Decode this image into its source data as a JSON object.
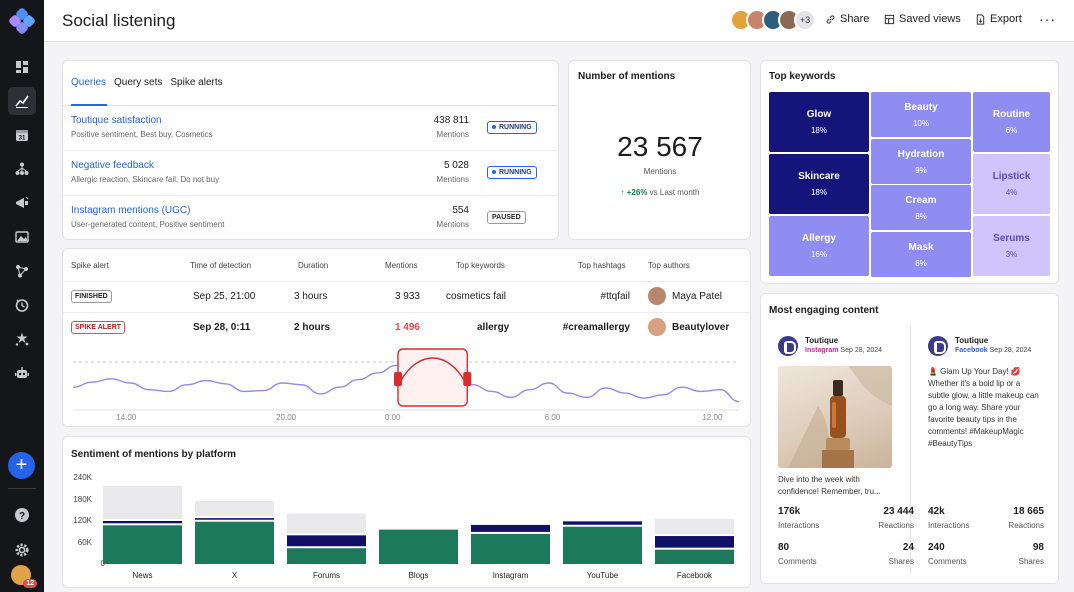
{
  "header": {
    "title": "Social listening",
    "collaborators_more": "+3",
    "share_label": "Share",
    "saved_views_label": "Saved views",
    "export_label": "Export",
    "more_icon": "ellipsis-icon"
  },
  "sidebar": {
    "items": [
      "dashboard-icon",
      "analytics-icon",
      "calendar-icon",
      "hierarchy-icon",
      "campaign-icon",
      "image-icon",
      "network-icon",
      "insights-icon",
      "stars-icon",
      "bot-icon"
    ],
    "active_item": "analytics-icon",
    "notification_count": "12"
  },
  "queries": {
    "tabs": [
      "Queries",
      "Query sets",
      "Spike alerts"
    ],
    "active_tab": "Queries",
    "rows": [
      {
        "name": "Toutique satisfaction",
        "tags": "Positive sentiment, Best buy, Cosmetics",
        "count": "438 811",
        "unit": "Mentions",
        "status": "RUNNING"
      },
      {
        "name": "Negative feedback",
        "tags": "Allergic reaction, Skincare fail, Do not buy",
        "count": "5 028",
        "unit": "Mentions",
        "status": "RUNNING"
      },
      {
        "name": "Instagram mentions (UGC)",
        "tags": "User-generated content, Positive sentiment",
        "count": "554",
        "unit": "Mentions",
        "status": "PAUSED"
      }
    ]
  },
  "mentions": {
    "title": "Number of mentions",
    "value": "23 567",
    "unit": "Mentions",
    "delta": "+26%",
    "delta_suffix": "vs Last month"
  },
  "keywords": {
    "title": "Top keywords",
    "items": [
      {
        "keyword": "Glow",
        "share": "18%"
      },
      {
        "keyword": "Skincare",
        "share": "18%"
      },
      {
        "keyword": "Allergy",
        "share": "16%"
      },
      {
        "keyword": "Beauty",
        "share": "10%"
      },
      {
        "keyword": "Hydration",
        "share": "9%"
      },
      {
        "keyword": "Cream",
        "share": "8%"
      },
      {
        "keyword": "Mask",
        "share": "8%"
      },
      {
        "keyword": "Routine",
        "share": "6%"
      },
      {
        "keyword": "Lipstick",
        "share": "4%"
      },
      {
        "keyword": "Serums",
        "share": "3%"
      }
    ],
    "colors": {
      "dark": "#15147a",
      "mid": "#8f8cf2",
      "light": "#cfc4fb"
    }
  },
  "spikes": {
    "columns": [
      "Spike alert",
      "Time of detection",
      "Duration",
      "Mentions",
      "Top keywords",
      "Top hashtags",
      "Top authors"
    ],
    "rows": [
      {
        "status": "FINISHED",
        "time": "Sep 25, 21:00",
        "duration": "3 hours",
        "mentions": "3 933",
        "keyword": "cosmetics fail",
        "hashtag": "#ttqfail",
        "author": "Maya Patel"
      },
      {
        "status": "SPIKE ALERT",
        "time": "Sep 28, 0:11",
        "duration": "2 hours",
        "mentions": "1 496",
        "keyword": "allergy",
        "hashtag": "#creamallergy",
        "author": "Beautylover"
      }
    ],
    "timeline": {
      "ticks": [
        "14.00",
        "20.00",
        "0.00",
        "6.00",
        "12.00"
      ],
      "tick_hours": [
        14,
        20,
        24,
        30,
        36
      ],
      "range_hours": [
        12,
        37
      ],
      "selected_range_hours": [
        24.2,
        26.8
      ],
      "values": [
        0.4,
        0.52,
        0.6,
        0.5,
        0.34,
        0.3,
        0.46,
        0.56,
        0.48,
        0.3,
        0.32,
        0.5,
        0.46,
        0.24,
        0.4,
        0.58,
        0.74,
        0.92,
        0.8,
        0.44,
        0.28,
        0.46,
        0.3,
        0.16,
        0.34,
        0.5,
        0.26,
        0.16,
        0.38,
        0.26,
        0.14,
        0.22,
        0.4,
        0.3,
        0.34,
        0.06
      ]
    }
  },
  "sentiment": {
    "title": "Sentiment of mentions by platform"
  },
  "engaging": {
    "title": "Most engaging content",
    "posts": [
      {
        "brand": "Toutique",
        "network": "Instagram",
        "date": "Sep 28, 2024",
        "text": "Dive into the week with confidence! Remember, tru...",
        "interactions": "176k",
        "interactions_label": "Interactions",
        "reactions": "23 444",
        "reactions_label": "Reactions",
        "comments": "80",
        "comments_label": "Comments",
        "shares": "24",
        "shares_label": "Shares"
      },
      {
        "brand": "Toutique",
        "network": "Facebook",
        "date": "Sep 28, 2024",
        "text": "💄 Glam Up Your Day! 💋 Whether it's a bold lip or a subtle glow, a little makeup can go a long way. Share your favorite beauty tips in the comments! #MakeupMagic #BeautyTips",
        "interactions": "42k",
        "interactions_label": "Interactions",
        "reactions": "18 665",
        "reactions_label": "Reactions",
        "comments": "240",
        "comments_label": "Comments",
        "shares": "98",
        "shares_label": "Shares"
      }
    ]
  },
  "chart_data": {
    "type": "bar",
    "title": "Sentiment of mentions by platform",
    "categories": [
      "News",
      "X",
      "Forums",
      "Blogs",
      "Instagram",
      "YouTube",
      "Facebook"
    ],
    "series": [
      {
        "name": "",
        "color": "#1c7a5b",
        "values": [
          108000,
          118000,
          44000,
          96000,
          84000,
          104000,
          40000
        ]
      },
      {
        "name": "",
        "color": "#101067",
        "values": [
          12000,
          10000,
          36000,
          0,
          25000,
          15000,
          38000
        ]
      },
      {
        "name": "",
        "color": "#e9e9ec",
        "values": [
          98000,
          48000,
          61000,
          0,
          0,
          0,
          48000
        ]
      }
    ],
    "yticks": [
      "240K",
      "180K",
      "120K",
      "60K",
      "0"
    ],
    "ylim": [
      0,
      240000
    ],
    "grid": true
  }
}
